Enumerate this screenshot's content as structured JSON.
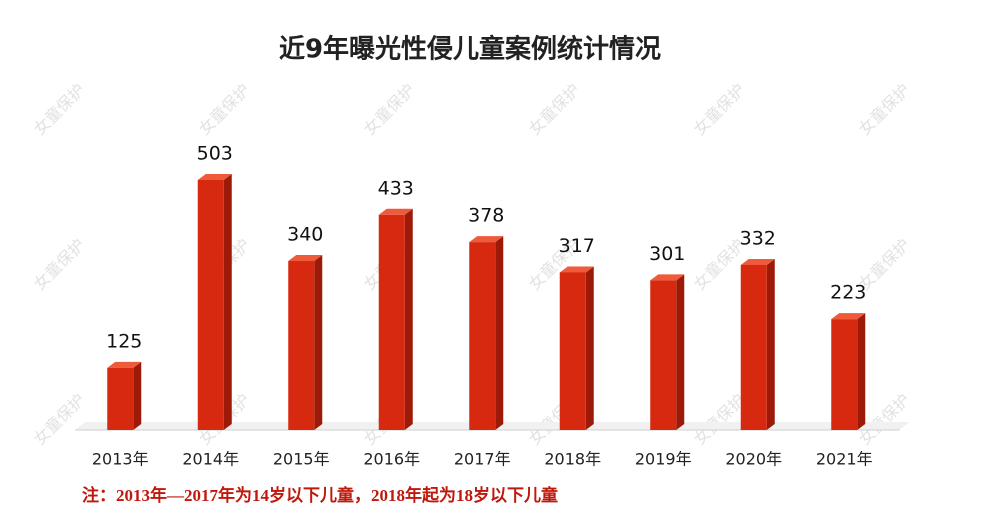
{
  "chart_data": {
    "type": "bar",
    "title": "近9年曝光性侵儿童案例统计情况",
    "categories": [
      "2013年",
      "2014年",
      "2015年",
      "2016年",
      "2017年",
      "2018年",
      "2019年",
      "2020年",
      "2021年"
    ],
    "values": [
      125,
      503,
      340,
      433,
      378,
      317,
      301,
      332,
      223
    ],
    "color": "#d6290f",
    "note": "注：2013年—2017年为14岁以下儿童，2018年起为18岁以下儿童",
    "watermark": "女童保护"
  }
}
